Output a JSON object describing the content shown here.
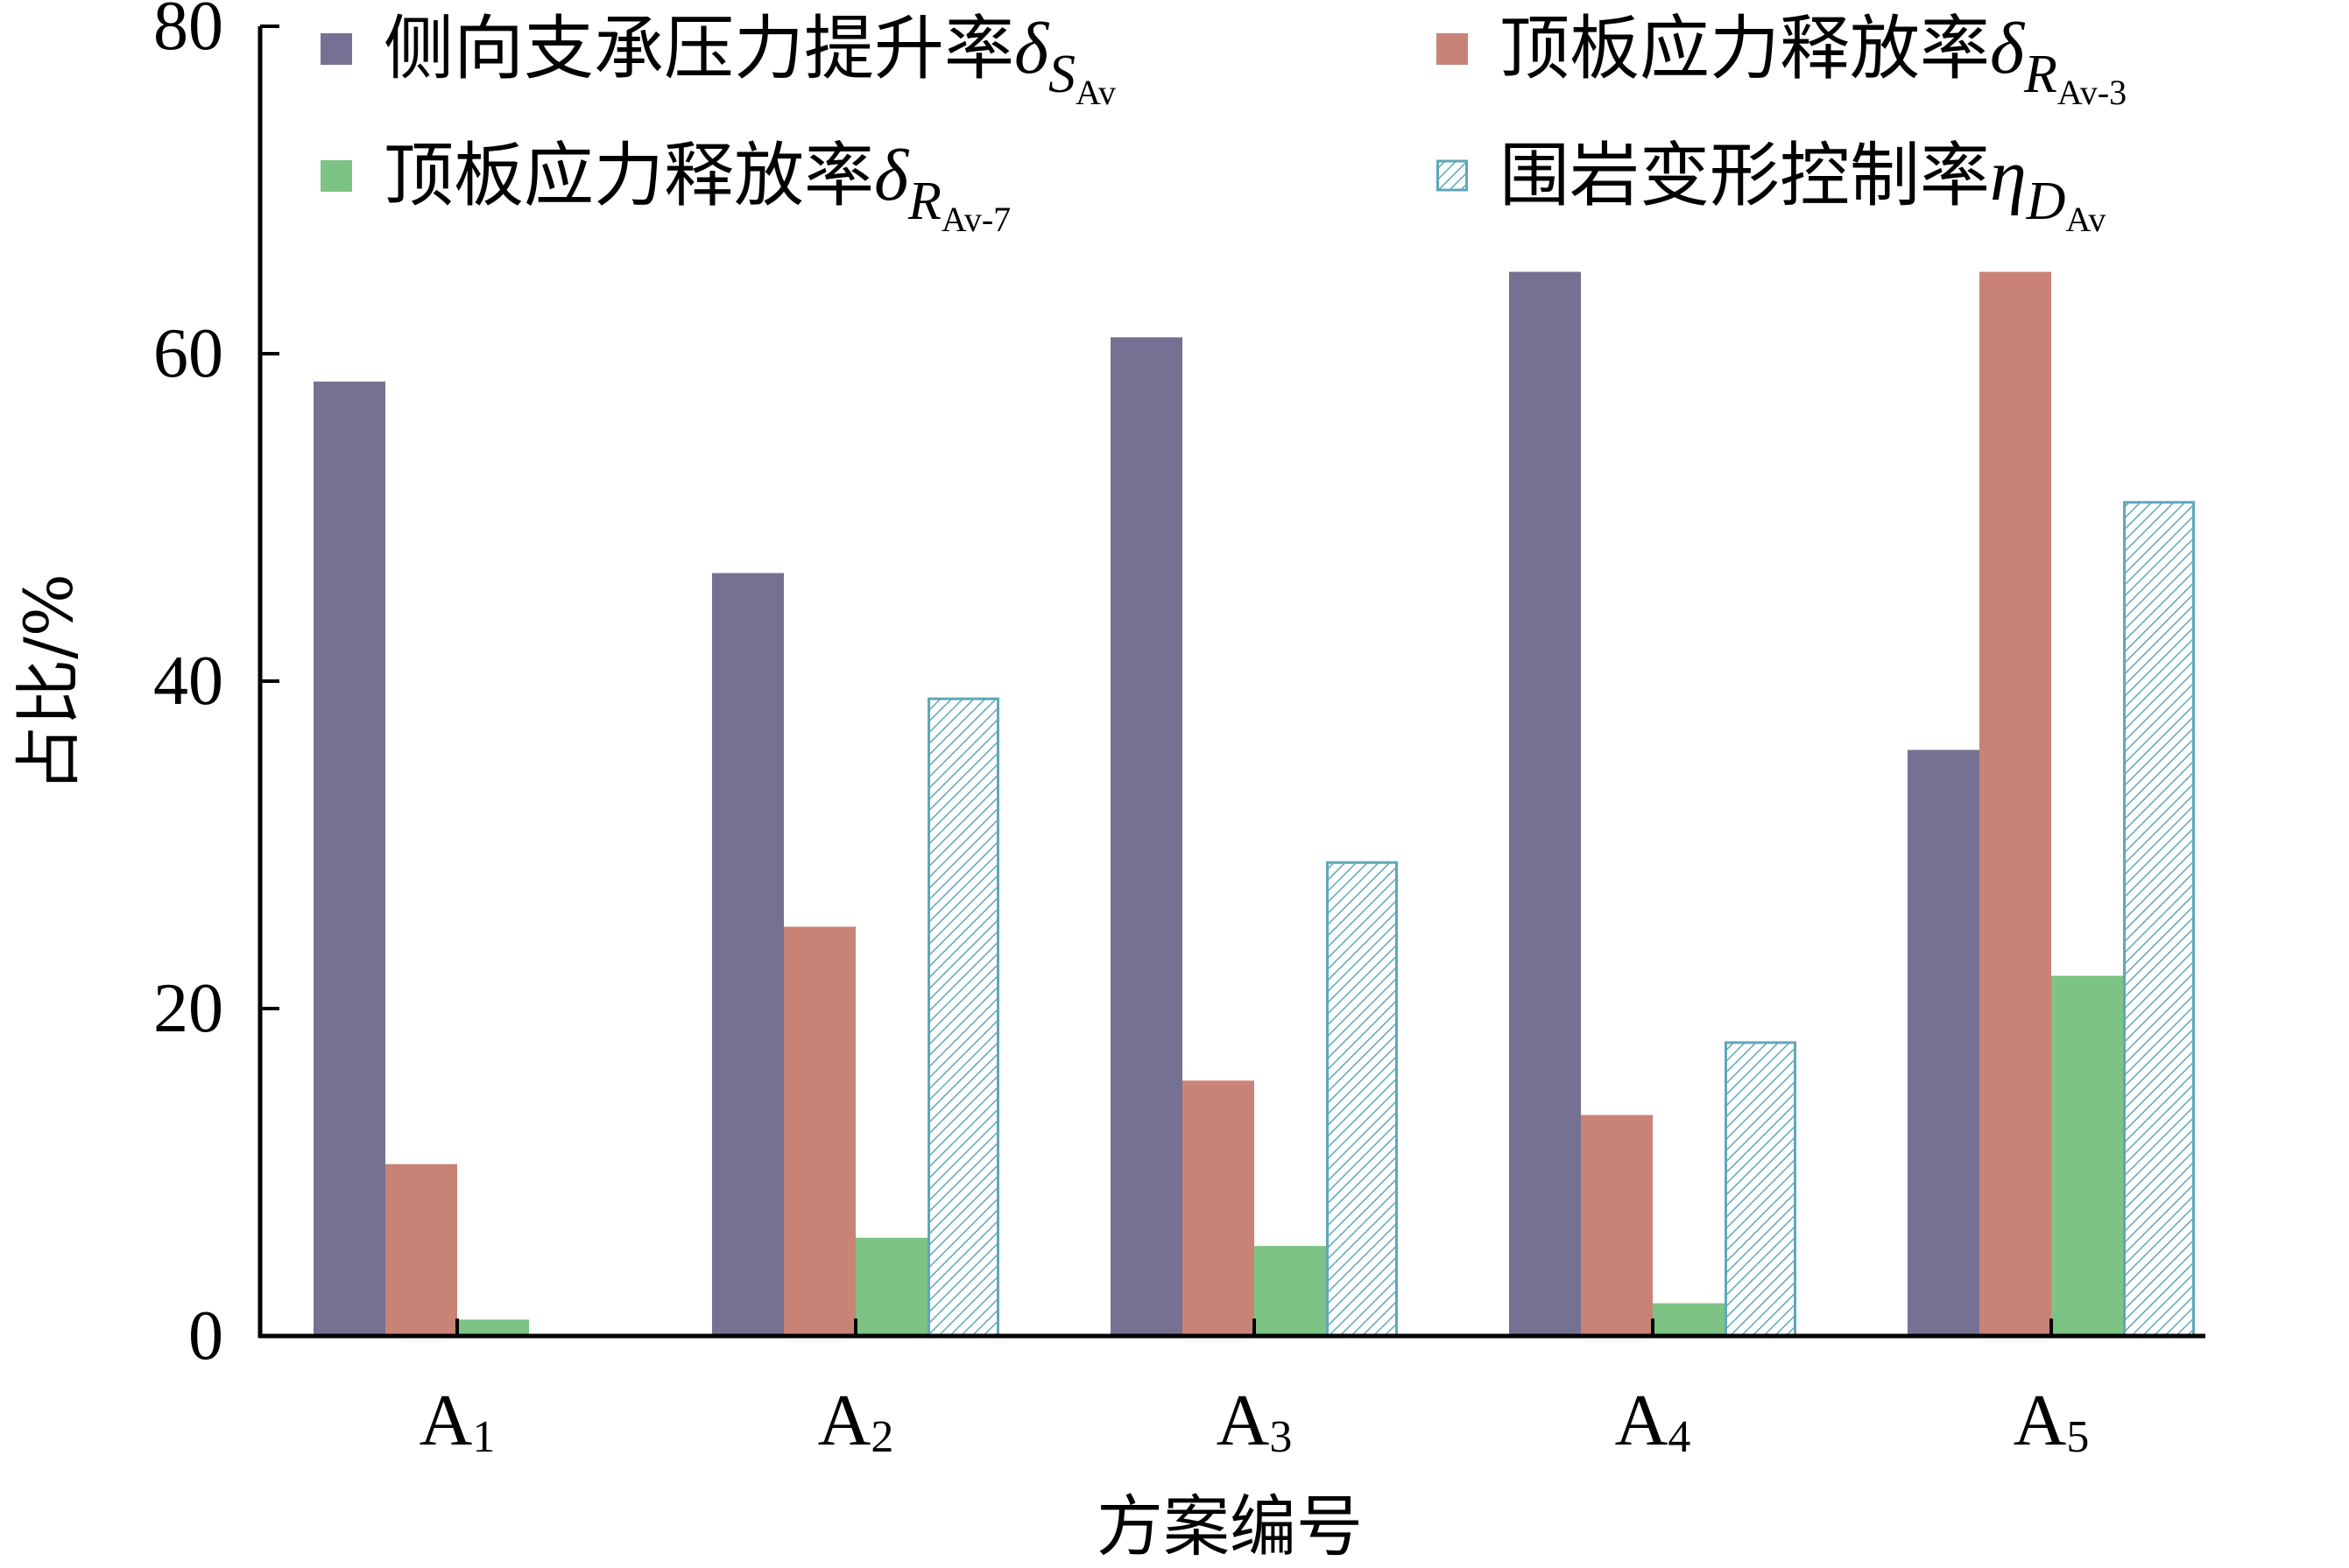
{
  "chart_data": {
    "type": "bar",
    "xlabel": "方案编号",
    "ylabel": "占比/%",
    "ylim": [
      0,
      80
    ],
    "yticks": [
      "0",
      "20",
      "40",
      "60",
      "80"
    ],
    "grid": false,
    "legend_position": "top",
    "categories": [
      {
        "base": "A",
        "sub": "1"
      },
      {
        "base": "A",
        "sub": "2"
      },
      {
        "base": "A",
        "sub": "3"
      },
      {
        "base": "A",
        "sub": "4"
      },
      {
        "base": "A",
        "sub": "5"
      }
    ],
    "series": [
      {
        "name": "侧向支承压力提升率",
        "symbol": "δ",
        "sub": "S",
        "subsub": "Av",
        "color": "#757193",
        "pattern": "solid",
        "values": [
          58.3,
          46.6,
          61.0,
          65.0,
          35.8
        ]
      },
      {
        "name": "顶板应力释放率",
        "symbol": "δ",
        "sub": "R",
        "subsub": "Av-3",
        "color": "#c98376",
        "pattern": "solid",
        "values": [
          10.5,
          25.0,
          15.6,
          13.5,
          65.0
        ]
      },
      {
        "name": "顶板应力释放率",
        "symbol": "δ",
        "sub": "R",
        "subsub": "Av-7",
        "color": "#7cc384",
        "pattern": "solid",
        "values": [
          1.0,
          6.0,
          5.5,
          2.0,
          22.0
        ]
      },
      {
        "name": "围岩变形控制率",
        "symbol": "η",
        "sub": "D",
        "subsub": "Av",
        "color": "#5fa7b9",
        "pattern": "hatch",
        "values": [
          0,
          39.0,
          29.0,
          18.0,
          51.0
        ]
      }
    ]
  }
}
